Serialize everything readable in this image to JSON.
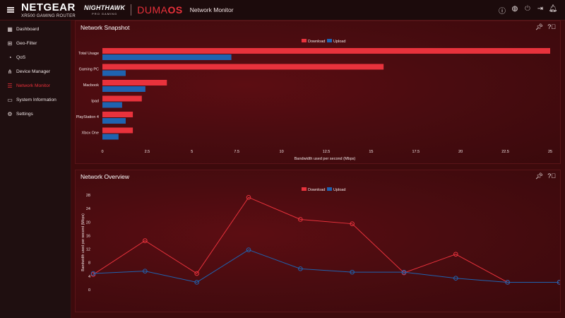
{
  "header": {
    "brand": "NETGEAR",
    "model": "XR500 GAMING ROUTER",
    "nighthawk": "NIGHTHAWK",
    "nighthawk_sub": "PRO GAMING",
    "duma_left": "DUMA",
    "duma_right": "OS",
    "page_title": "Network Monitor",
    "icons": [
      "info-icon",
      "globe-icon",
      "power-icon",
      "logout-icon",
      "bell-icon"
    ]
  },
  "sidebar": {
    "items": [
      {
        "label": "Dashboard",
        "icon": "grid-icon"
      },
      {
        "label": "Geo-Filter",
        "icon": "geo-filter-icon"
      },
      {
        "label": "QoS",
        "icon": "qos-icon"
      },
      {
        "label": "Device Manager",
        "icon": "device-manager-icon"
      },
      {
        "label": "Network Monitor",
        "icon": "network-monitor-icon",
        "active": true
      },
      {
        "label": "System Information",
        "icon": "system-info-icon"
      },
      {
        "label": "Settings",
        "icon": "gear-icon"
      }
    ]
  },
  "colors": {
    "download": "#e8323c",
    "upload": "#1f63b0",
    "accent": "#e8303a"
  },
  "panels": {
    "snapshot_title": "Network Snapshot",
    "overview_title": "Network Overview"
  },
  "chart_data": [
    {
      "type": "bar",
      "orientation": "horizontal",
      "categories": [
        "Total Usage",
        "Gaming PC",
        "Macbook",
        "Ipad",
        "PlayStation 4",
        "Xbox One"
      ],
      "series": [
        {
          "name": "Download",
          "values": [
            25,
            15.7,
            3.6,
            2.2,
            1.7,
            1.7
          ]
        },
        {
          "name": "Upload",
          "values": [
            7.2,
            1.3,
            2.4,
            1.1,
            1.3,
            0.9
          ]
        }
      ],
      "xlabel": "Bandwidth used per second (Mbps)",
      "xlim": [
        0,
        25
      ],
      "xticks": [
        "0",
        "2.5",
        "5",
        "7.5",
        "10",
        "12.5",
        "15",
        "17.5",
        "20",
        "22.5",
        "25"
      ],
      "legend": "top-center"
    },
    {
      "type": "line",
      "series": [
        {
          "name": "Download",
          "values": [
            4.5,
            14.5,
            4.8,
            27.3,
            20.8,
            19.5,
            5,
            10.5,
            2.2,
            2.2
          ]
        },
        {
          "name": "Upload",
          "values": [
            4.8,
            5.5,
            2.2,
            11.8,
            6.2,
            5.2,
            5.2,
            3.4,
            2.2,
            2.2
          ]
        }
      ],
      "ylabel": "Bandwidth used per second (Mbps)",
      "ylim": [
        0,
        28
      ],
      "yticks": [
        "28",
        "24",
        "20",
        "16",
        "12",
        "8",
        "4",
        "0"
      ],
      "legend": "top-center"
    }
  ]
}
